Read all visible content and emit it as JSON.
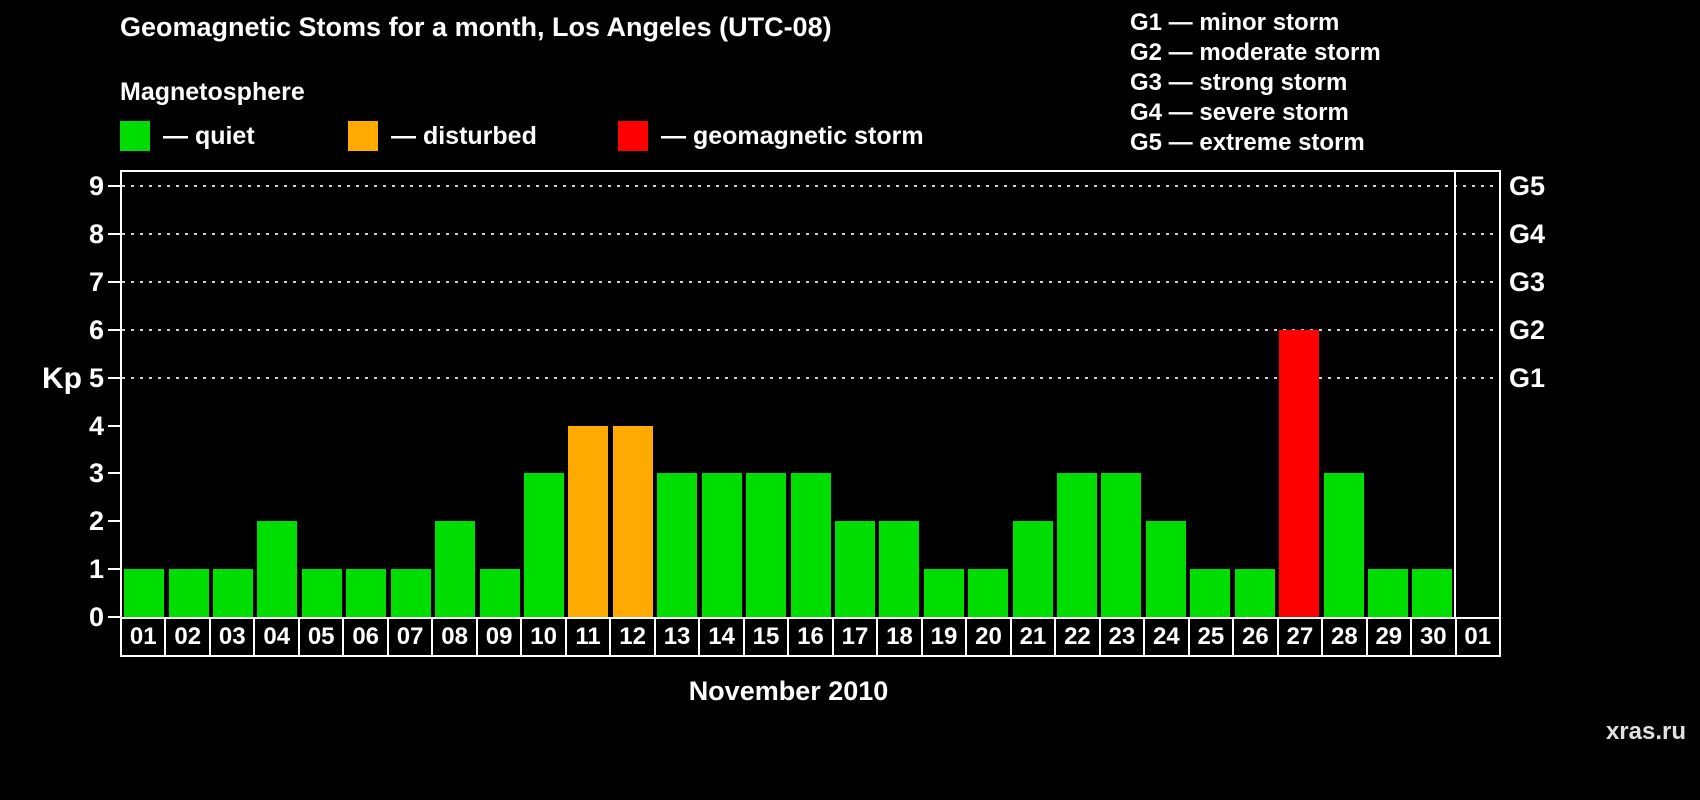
{
  "page": {
    "watermark": "xras.ru"
  },
  "legend": {
    "title": "Magnetosphere",
    "items": [
      {
        "name": "quiet",
        "label": "— quiet",
        "color": "#00dd00"
      },
      {
        "name": "disturbed",
        "label": "— disturbed",
        "color": "#ffaa00"
      },
      {
        "name": "storm",
        "label": "— geomagnetic storm",
        "color": "#ff0000"
      }
    ]
  },
  "storm_scale_legend": [
    "G1 — minor storm",
    "G2 — moderate storm",
    "G3 — strong storm",
    "G4 — severe storm",
    "G5 — extreme storm"
  ],
  "chart_data": {
    "type": "bar",
    "title": "Geomagnetic Stoms for a month, Los Angeles (UTC-08)",
    "xlabel": "November 2010",
    "ylabel": "Kp",
    "ylim": [
      0,
      9.3
    ],
    "y_ticks": [
      0,
      1,
      2,
      3,
      4,
      5,
      6,
      7,
      8,
      9
    ],
    "gridlines_at": [
      5,
      6,
      7,
      8,
      9
    ],
    "right_axis": {
      "labels": [
        "G1",
        "G2",
        "G3",
        "G4",
        "G5"
      ],
      "kp_levels": [
        5,
        6,
        7,
        8,
        9
      ]
    },
    "categories": [
      "01",
      "02",
      "03",
      "04",
      "05",
      "06",
      "07",
      "08",
      "09",
      "10",
      "11",
      "12",
      "13",
      "14",
      "15",
      "16",
      "17",
      "18",
      "19",
      "20",
      "21",
      "22",
      "23",
      "24",
      "25",
      "26",
      "27",
      "28",
      "29",
      "30",
      "01"
    ],
    "values": [
      1,
      1,
      1,
      2,
      1,
      1,
      1,
      2,
      1,
      3,
      4,
      4,
      3,
      3,
      3,
      3,
      2,
      2,
      1,
      1,
      2,
      3,
      3,
      2,
      1,
      1,
      6,
      3,
      1,
      1,
      null
    ],
    "statuses": [
      "quiet",
      "quiet",
      "quiet",
      "quiet",
      "quiet",
      "quiet",
      "quiet",
      "quiet",
      "quiet",
      "quiet",
      "disturbed",
      "disturbed",
      "quiet",
      "quiet",
      "quiet",
      "quiet",
      "quiet",
      "quiet",
      "quiet",
      "quiet",
      "quiet",
      "quiet",
      "quiet",
      "quiet",
      "quiet",
      "quiet",
      "storm",
      "quiet",
      "quiet",
      "quiet",
      null
    ],
    "status_colors": {
      "quiet": "#00dd00",
      "disturbed": "#ffaa00",
      "storm": "#ff0000"
    },
    "legend_position": "top",
    "grid": "dotted-at-storm-levels"
  }
}
